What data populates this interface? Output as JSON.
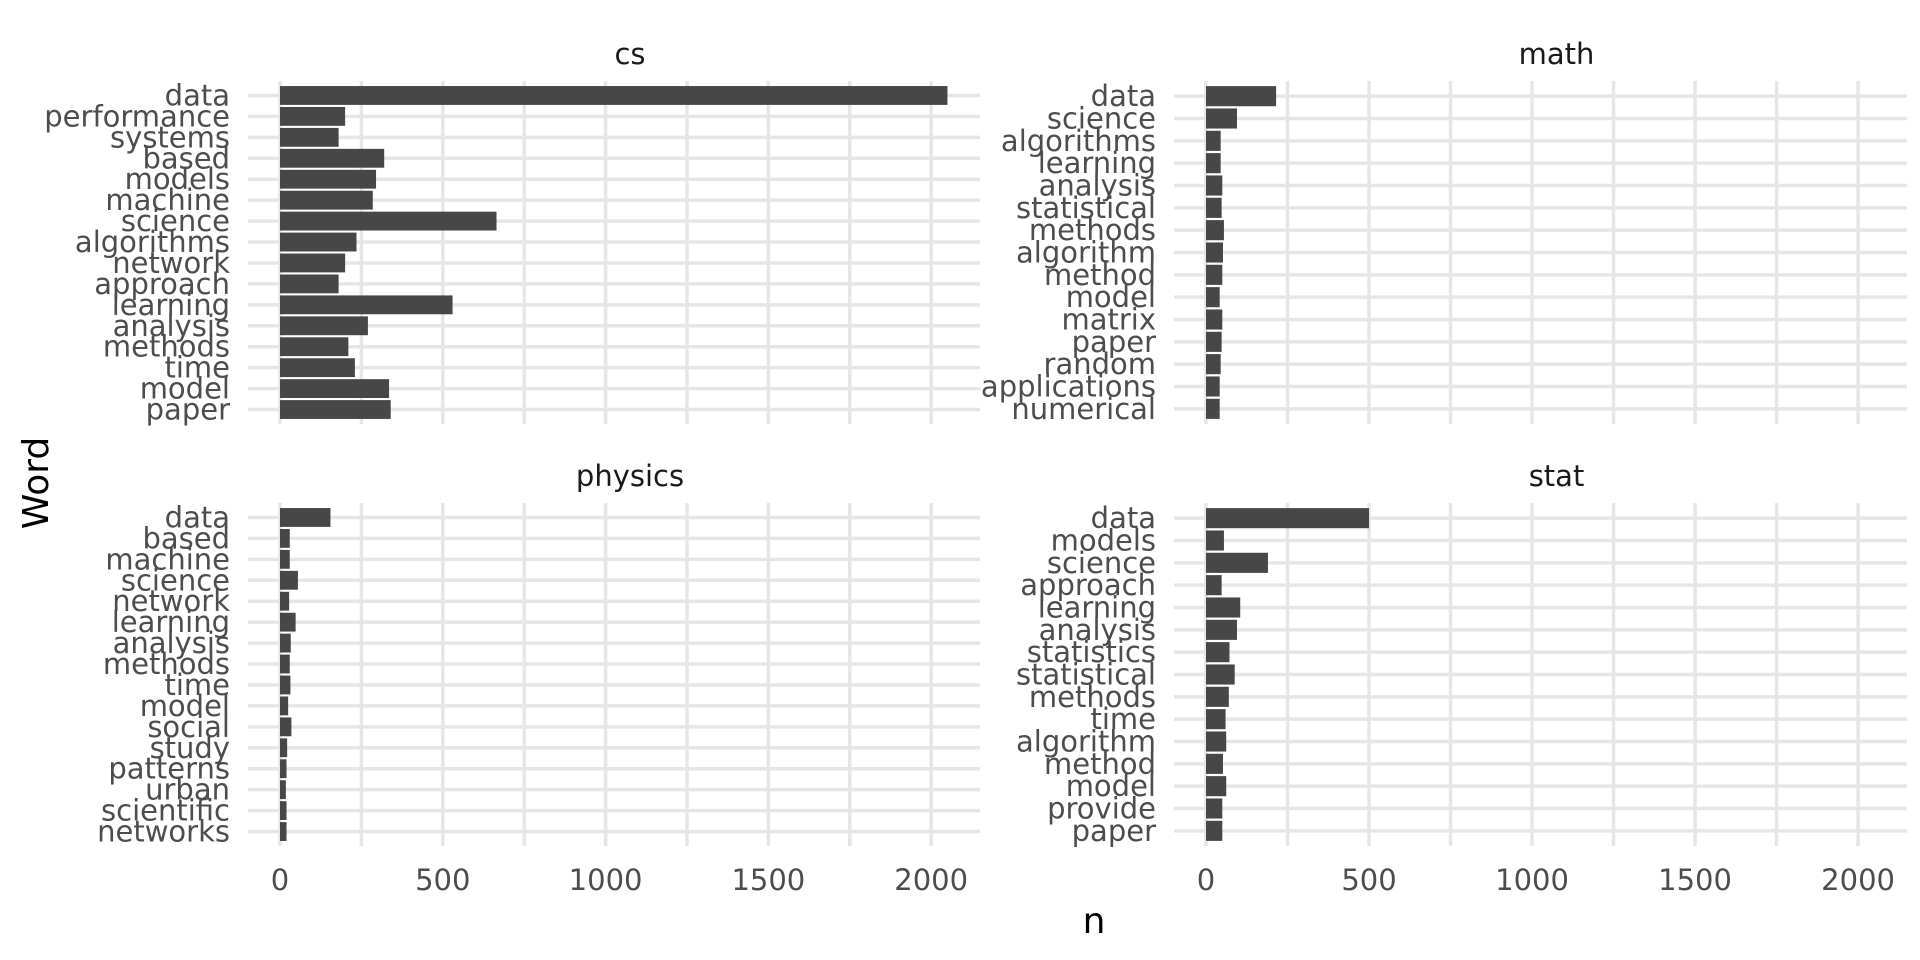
{
  "chart_data": {
    "type": "bar",
    "orientation": "horizontal",
    "layout": "facet_wrap_2x2",
    "xlabel": "n",
    "ylabel": "Word",
    "xlim": [
      0,
      2150
    ],
    "x_ticks": [
      0,
      500,
      1000,
      1500,
      2000
    ],
    "x_tick_labels": [
      "0",
      "500",
      "1000",
      "1500",
      "2000"
    ],
    "grid": true,
    "bar_color": "#474747",
    "grid_color": "#e6e6e6",
    "facets": [
      {
        "title": "cs",
        "words": [
          "data",
          "performance",
          "systems",
          "based",
          "models",
          "machine",
          "science",
          "algorithms",
          "network",
          "approach",
          "learning",
          "analysis",
          "methods",
          "time",
          "model",
          "paper"
        ],
        "values": [
          2050,
          200,
          180,
          320,
          295,
          285,
          665,
          235,
          200,
          180,
          530,
          270,
          210,
          230,
          335,
          340
        ]
      },
      {
        "title": "math",
        "words": [
          "data",
          "science",
          "algorithms",
          "learning",
          "analysis",
          "statistical",
          "methods",
          "algorithm",
          "method",
          "model",
          "matrix",
          "paper",
          "random",
          "applications",
          "numerical"
        ],
        "values": [
          215,
          95,
          45,
          45,
          50,
          48,
          55,
          52,
          50,
          42,
          50,
          48,
          45,
          42,
          42
        ]
      },
      {
        "title": "physics",
        "words": [
          "data",
          "based",
          "machine",
          "science",
          "network",
          "learning",
          "analysis",
          "methods",
          "time",
          "model",
          "social",
          "study",
          "patterns",
          "urban",
          "scientific",
          "networks"
        ],
        "values": [
          155,
          30,
          30,
          55,
          28,
          48,
          33,
          30,
          32,
          25,
          35,
          22,
          20,
          18,
          20,
          20
        ]
      },
      {
        "title": "stat",
        "words": [
          "data",
          "models",
          "science",
          "approach",
          "learning",
          "analysis",
          "statistics",
          "statistical",
          "methods",
          "time",
          "algorithm",
          "method",
          "model",
          "provide",
          "paper"
        ],
        "values": [
          500,
          55,
          190,
          48,
          105,
          95,
          72,
          88,
          70,
          60,
          62,
          52,
          62,
          50,
          50
        ]
      }
    ]
  }
}
